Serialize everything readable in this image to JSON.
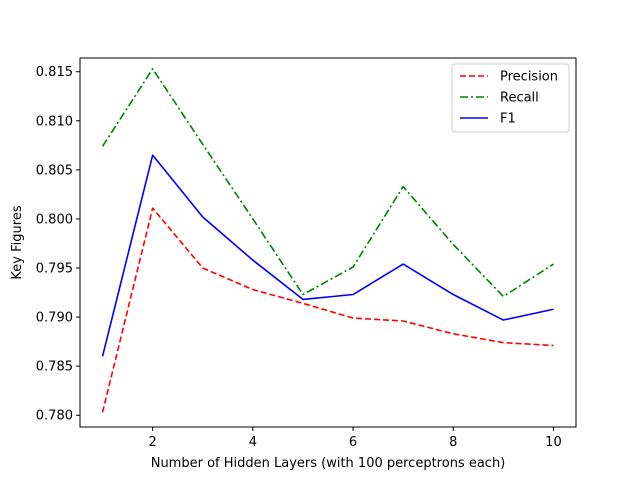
{
  "chart_data": {
    "type": "line",
    "xlabel": "Number of Hidden Layers (with 100 perceptrons each)",
    "ylabel": "Key Figures",
    "x": [
      1,
      2,
      3,
      4,
      5,
      6,
      7,
      8,
      9,
      10
    ],
    "xlim": [
      0.55,
      10.45
    ],
    "ylim": [
      0.7788,
      0.8164
    ],
    "xticks": [
      2,
      4,
      6,
      8,
      10
    ],
    "yticks": [
      0.78,
      0.785,
      0.79,
      0.795,
      0.8,
      0.805,
      0.81,
      0.815
    ],
    "xtick_labels": [
      "2",
      "4",
      "6",
      "8",
      "10"
    ],
    "ytick_labels": [
      "0.780",
      "0.785",
      "0.790",
      "0.795",
      "0.800",
      "0.805",
      "0.810",
      "0.815"
    ],
    "grid": false,
    "legend_position": "top-right",
    "series": [
      {
        "name": "Precision",
        "color": "#ff0000",
        "line_style": "dashed",
        "values": [
          0.7803,
          0.8011,
          0.795,
          0.7928,
          0.7914,
          0.7899,
          0.7896,
          0.7883,
          0.7874,
          0.7871
        ]
      },
      {
        "name": "Recall",
        "color": "#008000",
        "line_style": "dash-dot",
        "values": [
          0.8074,
          0.8153,
          0.8076,
          0.8,
          0.7923,
          0.7951,
          0.8033,
          0.7974,
          0.7921,
          0.7954
        ]
      },
      {
        "name": "F1",
        "color": "#0000ff",
        "line_style": "solid",
        "values": [
          0.786,
          0.8065,
          0.8002,
          0.7958,
          0.7918,
          0.7923,
          0.7954,
          0.7923,
          0.7897,
          0.7908
        ]
      }
    ]
  }
}
